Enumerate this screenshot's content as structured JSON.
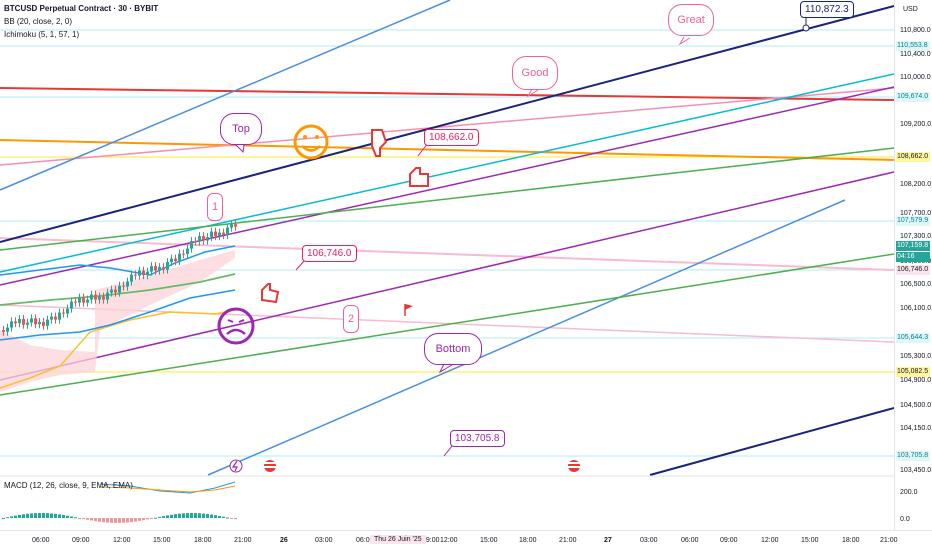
{
  "legend": {
    "symbol": "BTCUSD Perpetual Contract · 30 · BYBIT",
    "bb": "BB (20, close, 2, 0)",
    "ichimoku": "Ichimoku (5, 1, 57, 1)",
    "macd": "MACD (12, 26, close, 9, EMA, EMA)"
  },
  "currency": "USD",
  "price_ticks": [
    "110,800.0",
    "110,400.0",
    "110,000.0",
    "109,200.0",
    "108,200.0",
    "107,700.0",
    "107,300.0",
    "106,900.0",
    "106,500.0",
    "106,100.0",
    "105,300.0",
    "104,900.0",
    "104,500.0",
    "104,150.0",
    "103,450.0"
  ],
  "price_tags": [
    {
      "label": "110,553.8",
      "bg": "#e0f7fa",
      "fg": "#00838f"
    },
    {
      "label": "109,674.0",
      "bg": "#e0f7fa",
      "fg": "#00838f"
    },
    {
      "label": "108,662.0",
      "bg": "#fff59d",
      "fg": "#131722"
    },
    {
      "label": "107,579.9",
      "bg": "#e0f7fa",
      "fg": "#00838f"
    },
    {
      "label": "107,159.8",
      "bg": "#26a69a",
      "fg": "#ffffff"
    },
    {
      "label": "04:16",
      "bg": "#26a69a",
      "fg": "#ffffff"
    },
    {
      "label": "106,746.0",
      "bg": "#fce4ec",
      "fg": "#131722"
    },
    {
      "label": "105,644.3",
      "bg": "#e0f7fa",
      "fg": "#00838f"
    },
    {
      "label": "105,082.5",
      "bg": "#fff59d",
      "fg": "#131722"
    },
    {
      "label": "103,705.8",
      "bg": "#e0f7fa",
      "fg": "#00838f"
    }
  ],
  "macd_ticks": [
    "200.0",
    "0.0"
  ],
  "time_ticks": [
    "06:00",
    "09:00",
    "12:00",
    "15:00",
    "18:00",
    "21:00",
    "26",
    "03:00",
    "06:00",
    "09:00",
    "12:00",
    "15:00",
    "18:00",
    "21:00",
    "27",
    "03:00",
    "06:00",
    "09:00",
    "12:00",
    "15:00",
    "18:00",
    "21:00"
  ],
  "time_cursor": "Thu 26 Juin '25",
  "callouts": [
    {
      "text": "110,872.3",
      "color": "#1a237e"
    },
    {
      "text": "108,662.0",
      "color": "#e91e63"
    },
    {
      "text": "106,746.0",
      "color": "#e91e63"
    },
    {
      "text": "103,705.8",
      "color": "#9c27b0"
    }
  ],
  "bubbles": [
    "Great",
    "Good",
    "Top",
    "Bottom",
    "1",
    "2"
  ],
  "icons": [
    "smile-emoji-icon",
    "frown-emoji-icon",
    "thumbs-down-icon",
    "thumbs-up-icon",
    "thumbs-up-icon",
    "flag-icon",
    "lightning-icon",
    "us-flag-icon",
    "us-flag-icon"
  ]
}
